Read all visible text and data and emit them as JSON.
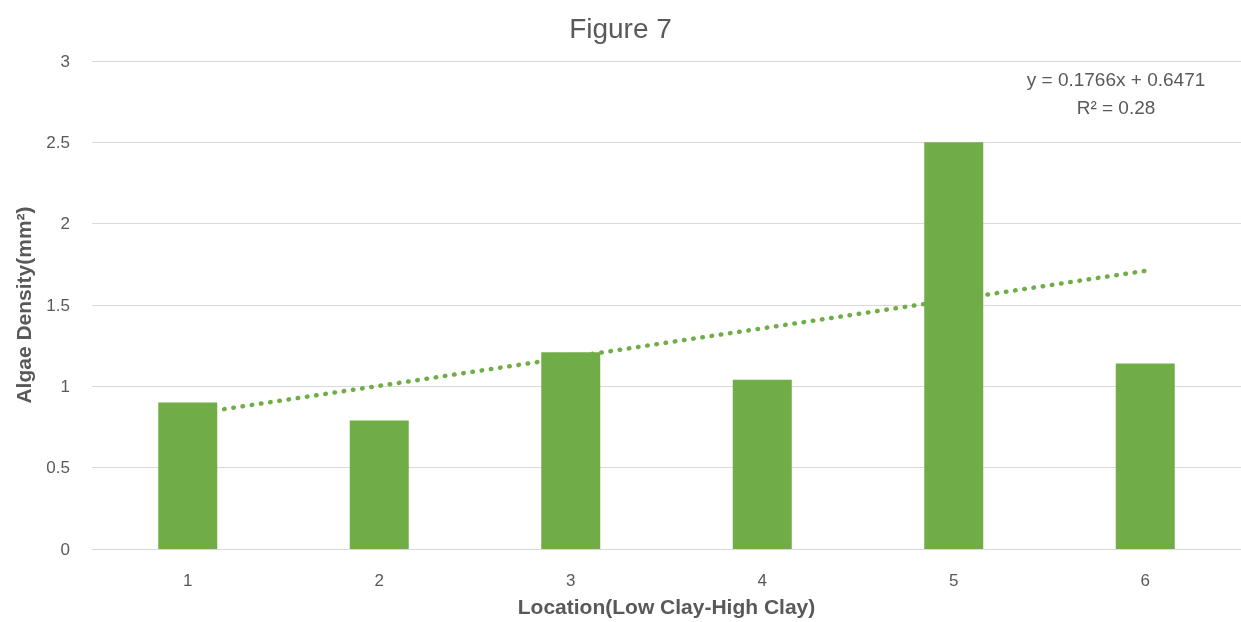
{
  "chart_data": {
    "type": "bar",
    "title": "Figure 7",
    "xlabel": "Location(Low Clay-High Clay)",
    "ylabel": "Algae Density(mm²)",
    "x": [
      1,
      2,
      3,
      4,
      5,
      6
    ],
    "series": [
      {
        "color": "#70ad47",
        "values": [
          0.9,
          0.79,
          1.21,
          1.04,
          2.5,
          1.14
        ]
      },
      {
        "type": "line",
        "x": [
          1.19,
          6
        ],
        "values": [
          0.86,
          1.71
        ],
        "color": "#70ad47",
        "line_style": "dotted",
        "marker": "none"
      }
    ],
    "xlim": [
      0.5,
      6.5
    ],
    "xticks": [
      1,
      2,
      3,
      4,
      5,
      6
    ],
    "ylim": [
      0,
      3
    ],
    "yticks": [
      0,
      0.5,
      1,
      1.5,
      2,
      2.5,
      3
    ],
    "grid": "y",
    "annotations": [
      "y = 0.1766x + 0.6471",
      "R² = 0.28"
    ]
  }
}
